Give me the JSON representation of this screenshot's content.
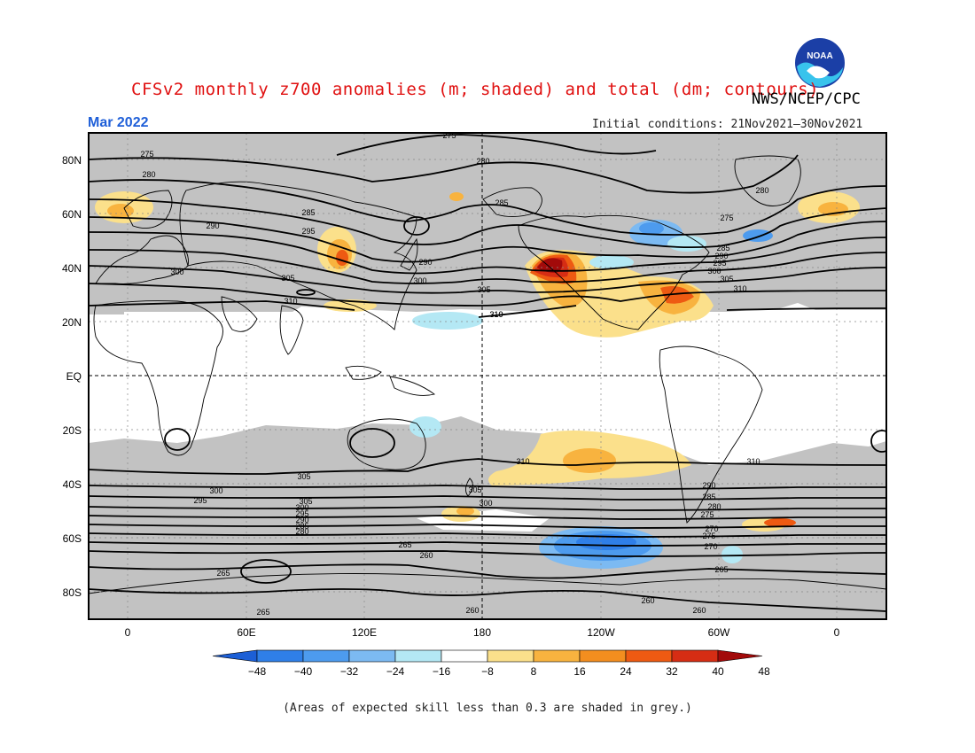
{
  "title": "CFSv2 monthly z700 anomalies (m; shaded) and total (dm; contours)",
  "agency": "NWS/NCEP/CPC",
  "month": "Mar 2022",
  "initial_conditions": "Initial conditions: 21Nov2021–30Nov2021",
  "logo": {
    "icon": "noaa-logo",
    "text": "NOAA"
  },
  "footnote": "(Areas of expected skill less than 0.3 are shaded in grey.)",
  "axes": {
    "lat_labels": [
      "80N",
      "60N",
      "40N",
      "20N",
      "EQ",
      "20S",
      "40S",
      "60S",
      "80S"
    ],
    "lon_labels": [
      "0",
      "60E",
      "120E",
      "180",
      "120W",
      "60W",
      "0"
    ]
  },
  "colorbar": {
    "ticks": [
      "−48",
      "−40",
      "−32",
      "−24",
      "−16",
      "−8",
      "8",
      "16",
      "24",
      "32",
      "40",
      "48"
    ],
    "colors": [
      "#1c5fd6",
      "#2f7fe8",
      "#4d9bee",
      "#7cbaf2",
      "#b4e8f4",
      "#ffffff",
      "#fbe08b",
      "#f8b33f",
      "#f38e1f",
      "#ee5a12",
      "#d62d14",
      "#a20a0a"
    ]
  },
  "contour_labels": [
    {
      "text": "275"
    },
    {
      "text": "280"
    },
    {
      "text": "275"
    },
    {
      "text": "280"
    },
    {
      "text": "285"
    },
    {
      "text": "290"
    },
    {
      "text": "295"
    },
    {
      "text": "300"
    },
    {
      "text": "305"
    },
    {
      "text": "310"
    },
    {
      "text": "290"
    },
    {
      "text": "300"
    },
    {
      "text": "305"
    },
    {
      "text": "310"
    },
    {
      "text": "285"
    },
    {
      "text": "280"
    },
    {
      "text": "275"
    },
    {
      "text": "285"
    },
    {
      "text": "290"
    },
    {
      "text": "295"
    },
    {
      "text": "300"
    },
    {
      "text": "305"
    },
    {
      "text": "310"
    },
    {
      "text": "310"
    },
    {
      "text": "310"
    },
    {
      "text": "310"
    },
    {
      "text": "305"
    },
    {
      "text": "300"
    },
    {
      "text": "295"
    },
    {
      "text": "290"
    },
    {
      "text": "285"
    },
    {
      "text": "280"
    },
    {
      "text": "275"
    },
    {
      "text": "270"
    },
    {
      "text": "305"
    },
    {
      "text": "300"
    },
    {
      "text": "265"
    },
    {
      "text": "260"
    },
    {
      "text": "305"
    },
    {
      "text": "300"
    },
    {
      "text": "295"
    },
    {
      "text": "290"
    },
    {
      "text": "285"
    },
    {
      "text": "280"
    },
    {
      "text": "275"
    },
    {
      "text": "270"
    },
    {
      "text": "265"
    },
    {
      "text": "265"
    },
    {
      "text": "265"
    },
    {
      "text": "260"
    },
    {
      "text": "260"
    },
    {
      "text": "260"
    }
  ]
}
